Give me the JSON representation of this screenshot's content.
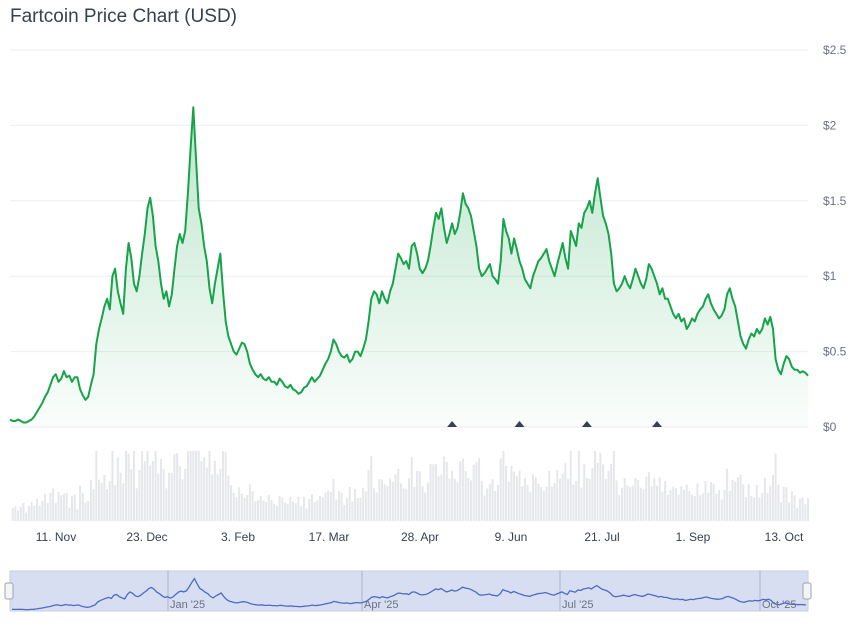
{
  "chart_data": {
    "type": "area",
    "title": "Fartcoin Price Chart (USD)",
    "currency": "USD",
    "y_ticks": [
      "$0",
      "$0.5",
      "$1",
      "$1.5",
      "$2",
      "$2.5"
    ],
    "ylim": [
      0,
      2.5
    ],
    "x_ticks": [
      "11. Nov",
      "23. Dec",
      "3. Feb",
      "17. Mar",
      "28. Apr",
      "9. Jun",
      "21. Jul",
      "1. Sep",
      "13. Oct"
    ],
    "navigator_ticks": [
      "Jan '25",
      "Apr '25",
      "Jul '25",
      "Oct '25"
    ],
    "grid": true,
    "line_color": "#16a34a",
    "fill_color": "#16a34a",
    "volume_color": "#d1d5db",
    "navigator_color": "#4b6cc2",
    "series": [
      {
        "values": [
          0.05,
          0.04,
          0.04,
          0.05,
          0.04,
          0.03,
          0.03,
          0.04,
          0.05,
          0.07,
          0.1,
          0.13,
          0.16,
          0.2,
          0.23,
          0.28,
          0.33,
          0.35,
          0.3,
          0.32,
          0.37,
          0.33,
          0.34,
          0.3,
          0.33,
          0.33,
          0.25,
          0.21,
          0.18,
          0.2,
          0.28,
          0.35,
          0.55,
          0.65,
          0.72,
          0.8,
          0.85,
          0.78,
          1.0,
          1.05,
          0.9,
          0.82,
          0.75,
          1.05,
          1.22,
          1.12,
          0.95,
          0.9,
          1.0,
          1.15,
          1.28,
          1.45,
          1.52,
          1.4,
          1.2,
          1.1,
          0.95,
          0.85,
          0.9,
          0.8,
          0.88,
          1.05,
          1.2,
          1.28,
          1.22,
          1.3,
          1.55,
          1.85,
          2.12,
          1.78,
          1.45,
          1.35,
          1.2,
          1.1,
          0.92,
          0.82,
          0.95,
          1.05,
          1.15,
          0.9,
          0.7,
          0.6,
          0.55,
          0.5,
          0.48,
          0.52,
          0.56,
          0.55,
          0.5,
          0.42,
          0.38,
          0.35,
          0.33,
          0.35,
          0.32,
          0.31,
          0.33,
          0.3,
          0.3,
          0.28,
          0.32,
          0.3,
          0.27,
          0.26,
          0.28,
          0.25,
          0.24,
          0.22,
          0.23,
          0.26,
          0.27,
          0.3,
          0.33,
          0.3,
          0.32,
          0.34,
          0.38,
          0.42,
          0.45,
          0.5,
          0.58,
          0.55,
          0.5,
          0.47,
          0.46,
          0.48,
          0.43,
          0.45,
          0.5,
          0.5,
          0.47,
          0.52,
          0.58,
          0.7,
          0.85,
          0.9,
          0.88,
          0.82,
          0.9,
          0.85,
          0.82,
          0.9,
          0.95,
          1.05,
          1.15,
          1.12,
          1.08,
          1.1,
          1.05,
          1.2,
          1.22,
          1.15,
          1.05,
          1.02,
          1.05,
          1.1,
          1.2,
          1.32,
          1.42,
          1.38,
          1.45,
          1.32,
          1.22,
          1.28,
          1.35,
          1.28,
          1.32,
          1.42,
          1.55,
          1.48,
          1.45,
          1.4,
          1.3,
          1.2,
          1.05,
          1.0,
          1.02,
          1.05,
          1.08,
          1.0,
          0.98,
          0.95,
          1.1,
          1.38,
          1.3,
          1.25,
          1.15,
          1.25,
          1.18,
          1.1,
          1.05,
          0.98,
          0.95,
          0.92,
          1.0,
          1.05,
          1.1,
          1.12,
          1.15,
          1.18,
          1.1,
          1.05,
          1.0,
          1.08,
          1.15,
          1.22,
          1.12,
          1.05,
          1.3,
          1.25,
          1.2,
          1.35,
          1.32,
          1.42,
          1.45,
          1.5,
          1.42,
          1.55,
          1.65,
          1.52,
          1.4,
          1.35,
          1.28,
          1.15,
          0.95,
          0.9,
          0.92,
          0.95,
          1.0,
          0.95,
          0.92,
          0.98,
          1.05,
          1.0,
          0.95,
          0.92,
          0.98,
          1.08,
          1.05,
          1.0,
          0.95,
          0.88,
          0.92,
          0.85,
          0.85,
          0.8,
          0.75,
          0.72,
          0.75,
          0.7,
          0.72,
          0.65,
          0.68,
          0.72,
          0.7,
          0.75,
          0.78,
          0.8,
          0.85,
          0.88,
          0.82,
          0.78,
          0.75,
          0.72,
          0.74,
          0.78,
          0.88,
          0.92,
          0.85,
          0.8,
          0.7,
          0.6,
          0.55,
          0.52,
          0.58,
          0.62,
          0.6,
          0.65,
          0.62,
          0.65,
          0.72,
          0.68,
          0.73,
          0.65,
          0.45,
          0.38,
          0.35,
          0.42,
          0.47,
          0.45,
          0.4,
          0.38,
          0.38,
          0.36,
          0.37,
          0.36,
          0.34
        ]
      }
    ],
    "markers_x_index": [
      164,
      189,
      214,
      240
    ]
  }
}
